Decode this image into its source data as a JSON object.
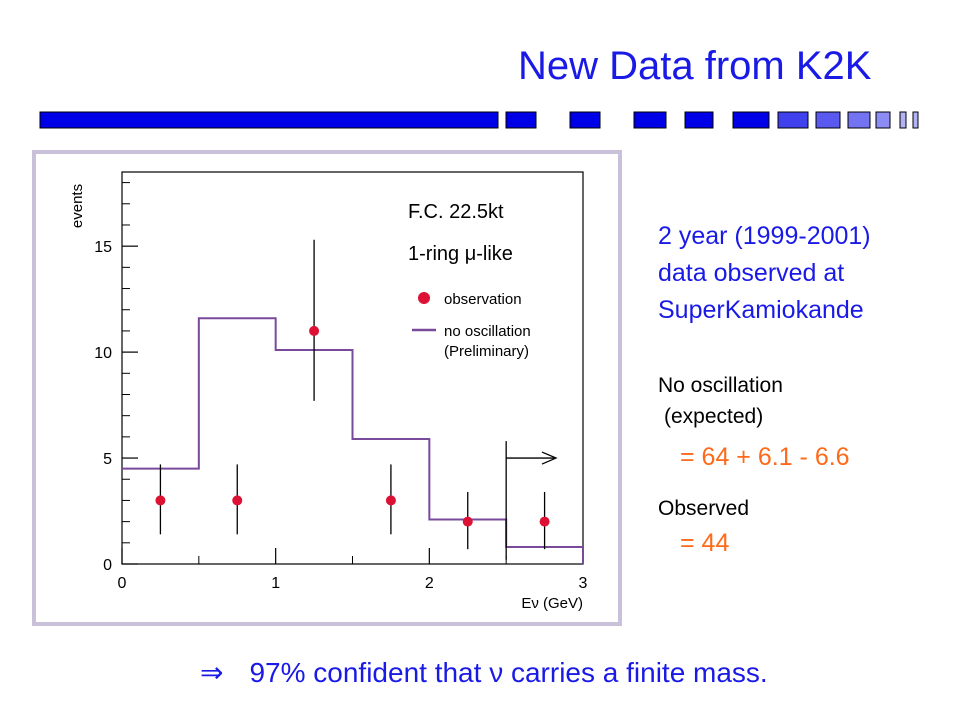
{
  "slide": {
    "title": "New Data from K2K",
    "bar_color": "#0000e6",
    "accent_blue": "#1a1ae6",
    "accent_orange": "#ff6a1a"
  },
  "summary": {
    "line1": "2 year (1999-2001)",
    "line2": "data observed at",
    "line3": "SuperKamiokande"
  },
  "expected": {
    "label1": "No oscillation",
    "label2": "(expected)",
    "value": "= 64 + 6.1 - 6.6"
  },
  "observed": {
    "label": "Observed",
    "value": "= 44"
  },
  "conclusion": {
    "arrow": "⇒",
    "text": "97% confident that ν carries a finite mass."
  },
  "chart_data": {
    "type": "histogram",
    "ylabel": "events",
    "xlabel": "Eν (GeV)",
    "xlim": [
      0,
      3
    ],
    "ylim": [
      0,
      18.5
    ],
    "x_ticks": [
      0,
      1,
      2,
      3
    ],
    "y_ticks": [
      0,
      5,
      10,
      15
    ],
    "annotations": [
      "F.C. 22.5kt",
      "1-ring μ-like"
    ],
    "legend": [
      {
        "name": "observation",
        "marker": "dot",
        "color": "#dd1133"
      },
      {
        "name": "no oscillation (Preliminary)",
        "marker": "line",
        "color": "#7a4a9a"
      }
    ],
    "legend_line1": "no oscillation",
    "legend_line2": "(Preliminary)",
    "no_oscillation": {
      "bin_edges": [
        0,
        0.5,
        1.0,
        1.5,
        2.0,
        2.5,
        3.0
      ],
      "values": [
        4.5,
        11.6,
        10.1,
        5.9,
        2.1,
        0.8
      ]
    },
    "observation": {
      "x": [
        0.25,
        0.75,
        1.25,
        1.75,
        2.25,
        2.75
      ],
      "y": [
        3,
        3,
        11,
        3,
        2,
        2
      ],
      "err_low": [
        1.6,
        1.6,
        3.3,
        1.6,
        1.3,
        1.3
      ],
      "err_high": [
        1.7,
        1.7,
        4.3,
        1.7,
        1.4,
        1.4
      ]
    },
    "range_arrow_from_x": 2.5
  }
}
